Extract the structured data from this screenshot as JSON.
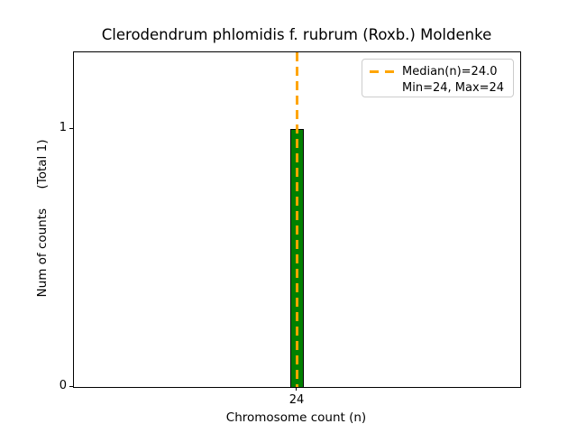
{
  "chart_data": {
    "type": "bar",
    "title": "Clerodendrum phlomidis f. rubrum (Roxb.) Moldenke",
    "xlabel": "Chromosome count (n)",
    "ylabel": "Num of counts     (Total 1)",
    "categories": [
      "24"
    ],
    "values": [
      1
    ],
    "total_counts": 1,
    "yticks": [
      "0",
      "1"
    ],
    "ylim": [
      0,
      1.3
    ],
    "grid": false,
    "bar_color": "#008000",
    "bar_edge_color": "#000000",
    "median_line": {
      "value": 24.0,
      "color": "#FFA500",
      "style": "dashed",
      "orientation": "vertical"
    },
    "legend": {
      "position": "upper right",
      "entries": [
        {
          "label": "Median(n)=24.0",
          "handle": "orange-dashed-line"
        },
        {
          "label": "Min=24, Max=24",
          "handle": "none"
        }
      ]
    },
    "stats": {
      "median": 24.0,
      "min": 24,
      "max": 24
    }
  }
}
